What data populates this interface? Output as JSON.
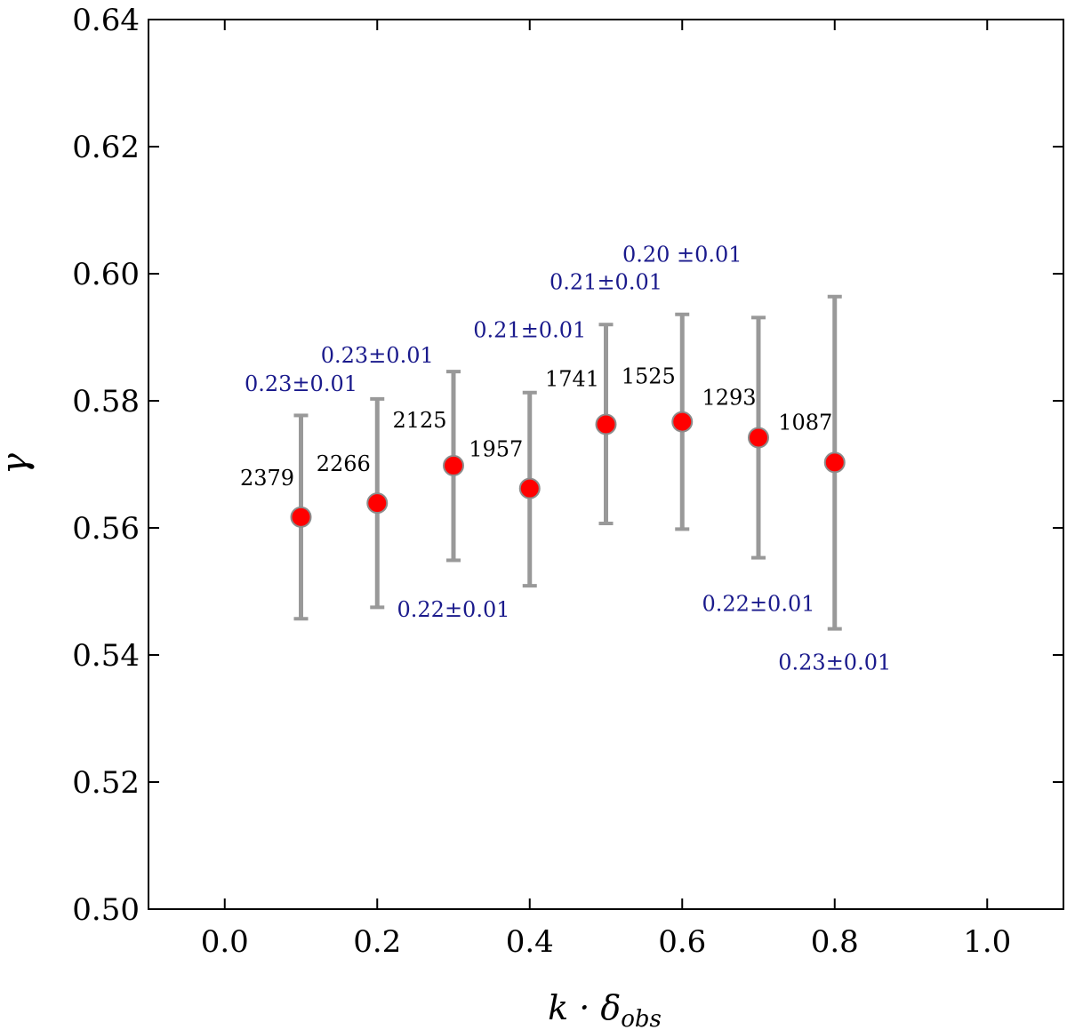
{
  "chart_data": {
    "type": "scatter",
    "xlabel": "k · δobs",
    "ylabel": "γ",
    "xlim": [
      -0.1,
      1.1
    ],
    "ylim": [
      0.5,
      0.64
    ],
    "xticks": [
      "0.0",
      "0.2",
      "0.4",
      "0.6",
      "0.8",
      "1.0"
    ],
    "yticks": [
      "0.50",
      "0.52",
      "0.54",
      "0.56",
      "0.58",
      "0.60",
      "0.62",
      "0.64"
    ],
    "grid": false,
    "colors": {
      "point": "#ff0000",
      "point_edge": "#8c8c8c",
      "errorbar": "#999999",
      "fit_text": "#1a1a8c",
      "count_text": "#000000"
    },
    "points": [
      {
        "x": 0.1,
        "y": 0.5617,
        "ylow": 0.5457,
        "yhigh": 0.5777,
        "count": "2379",
        "fit": "0.23±0.01"
      },
      {
        "x": 0.2,
        "y": 0.5639,
        "ylow": 0.5475,
        "yhigh": 0.5803,
        "count": "2266",
        "fit": "0.23±0.01"
      },
      {
        "x": 0.3,
        "y": 0.5698,
        "ylow": 0.5549,
        "yhigh": 0.5846,
        "count": "2125",
        "fit": "0.22±0.01"
      },
      {
        "x": 0.4,
        "y": 0.5662,
        "ylow": 0.5509,
        "yhigh": 0.5813,
        "count": "1957",
        "fit": "0.21±0.01"
      },
      {
        "x": 0.5,
        "y": 0.5763,
        "ylow": 0.5607,
        "yhigh": 0.592,
        "count": "1741",
        "fit": "0.21±0.01"
      },
      {
        "x": 0.6,
        "y": 0.5767,
        "ylow": 0.5598,
        "yhigh": 0.5936,
        "count": "1525",
        "fit": "0.20 ±0.01"
      },
      {
        "x": 0.7,
        "y": 0.5742,
        "ylow": 0.5553,
        "yhigh": 0.5931,
        "count": "1293",
        "fit": "0.22±0.01"
      },
      {
        "x": 0.8,
        "y": 0.5703,
        "ylow": 0.5441,
        "yhigh": 0.5964,
        "count": "1087",
        "fit": "0.23±0.01"
      }
    ]
  }
}
